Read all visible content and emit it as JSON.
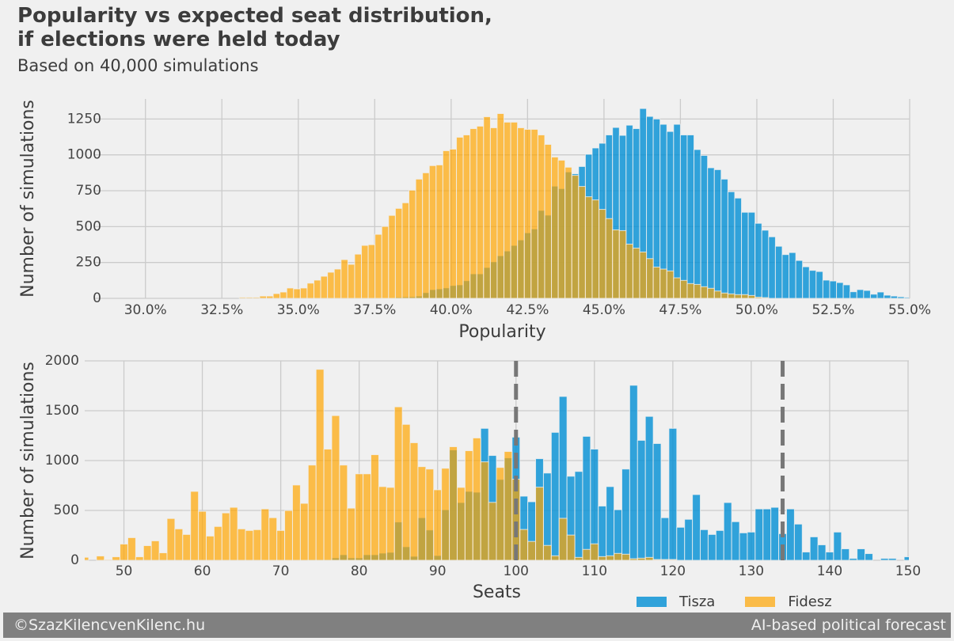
{
  "header": {
    "title_line1": "Popularity vs expected seat distribution,",
    "title_line2": "if elections were held today",
    "subtitle": "Based on 40,000 simulations"
  },
  "legend": [
    {
      "name": "Tisza",
      "color": "#30a2da"
    },
    {
      "name": "Fidesz",
      "color": "#fabb48"
    }
  ],
  "footer": {
    "left": "©SzazKilencvenKilenc.hu",
    "right": "AI-based political forecast"
  },
  "colors": {
    "background": "#f0f0f0",
    "grid": "#cbcbcb",
    "tisza": "#008fd5",
    "fidesz": "#ffa500",
    "threshold_line": "#777777",
    "footer_bg": "#808080"
  },
  "chart_data": [
    {
      "type": "bar",
      "subtype": "histogram-overlay",
      "xlabel": "Popularity",
      "ylabel": "Number of simulations",
      "xlim": [
        28.35,
        55.0
      ],
      "ylim": [
        0,
        1390
      ],
      "grid": true,
      "xticks": [
        "30.0%",
        "32.5%",
        "35.0%",
        "37.5%",
        "40.0%",
        "42.5%",
        "45.0%",
        "47.5%",
        "50.0%",
        "52.5%",
        "55.0%"
      ],
      "xtick_values": [
        30,
        32.5,
        35,
        37.5,
        40,
        42.5,
        45,
        47.5,
        50,
        52.5,
        55
      ],
      "yticks": [
        "0",
        "250",
        "500",
        "750",
        "1000",
        "1250"
      ],
      "ytick_values": [
        0,
        250,
        500,
        750,
        1000,
        1250
      ],
      "bin_start": 33.07,
      "bin_width": 0.222,
      "series": [
        {
          "name": "Tisza",
          "values": [
            0,
            0,
            0,
            0,
            0,
            0,
            0,
            0,
            0,
            0,
            0,
            0,
            0,
            0,
            0,
            0,
            0,
            0,
            0,
            0,
            0,
            2,
            4,
            8,
            10,
            11,
            16,
            40,
            61,
            66,
            73,
            90,
            94,
            123,
            171,
            171,
            215,
            255,
            297,
            330,
            369,
            407,
            457,
            484,
            613,
            580,
            782,
            765,
            881,
            868,
            919,
            1004,
            1048,
            1081,
            1139,
            1191,
            1136,
            1207,
            1183,
            1323,
            1268,
            1250,
            1213,
            1163,
            1213,
            1139,
            1139,
            1037,
            996,
            910,
            897,
            831,
            743,
            699,
            600,
            600,
            523,
            475,
            429,
            363,
            305,
            319,
            264,
            220,
            195,
            187,
            127,
            121,
            110,
            94,
            46,
            61,
            55,
            29,
            44,
            22,
            16,
            11,
            7
          ]
        },
        {
          "name": "Fidesz",
          "values": [
            7,
            7,
            7,
            16,
            16,
            33,
            44,
            72,
            66,
            72,
            106,
            127,
            154,
            182,
            204,
            270,
            237,
            308,
            369,
            374,
            446,
            501,
            578,
            627,
            666,
            754,
            831,
            875,
            925,
            930,
            1029,
            1040,
            1123,
            1139,
            1183,
            1200,
            1266,
            1189,
            1288,
            1228,
            1228,
            1189,
            1178,
            1178,
            1139,
            1073,
            985,
            963,
            914,
            857,
            780,
            708,
            686,
            620,
            556,
            477,
            472,
            378,
            350,
            323,
            277,
            218,
            204,
            191,
            143,
            125,
            103,
            97,
            81,
            70,
            51,
            37,
            31,
            26,
            26,
            20,
            8,
            5
          ]
        }
      ]
    },
    {
      "type": "bar",
      "subtype": "histogram-overlay",
      "xlabel": "Seats",
      "ylabel": "Number of simulations",
      "xlim": [
        45,
        150.1
      ],
      "ylim": [
        0,
        2000
      ],
      "grid": true,
      "xticks": [
        "50",
        "60",
        "70",
        "80",
        "90",
        "100",
        "110",
        "120",
        "130",
        "140",
        "150"
      ],
      "xtick_values": [
        50,
        60,
        70,
        80,
        90,
        100,
        110,
        120,
        130,
        140,
        150
      ],
      "yticks": [
        "0",
        "500",
        "1000",
        "1500",
        "2000"
      ],
      "ytick_values": [
        0,
        500,
        1000,
        1500,
        2000
      ],
      "bin_start": 45,
      "bin_width": 1,
      "threshold_lines": [
        100,
        134
      ],
      "series": [
        {
          "name": "Tisza",
          "values": [
            0,
            0,
            0,
            0,
            0,
            0,
            0,
            0,
            0,
            0,
            0,
            0,
            0,
            0,
            0,
            0,
            0,
            0,
            0,
            0,
            0,
            0,
            0,
            0,
            0,
            0,
            0,
            0,
            0,
            8,
            8,
            8,
            24,
            56,
            24,
            24,
            56,
            56,
            72,
            80,
            384,
            136,
            40,
            427,
            304,
            48,
            507,
            1107,
            579,
            691,
            683,
            1323,
            1051,
            811,
            1027,
            1235,
            643,
            587,
            1019,
            875,
            1283,
            1643,
            843,
            891,
            1243,
            1115,
            544,
            739,
            507,
            915,
            1755,
            1203,
            1443,
            1171,
            427,
            1323,
            331,
            411,
            659,
            307,
            259,
            299,
            579,
            387,
            275,
            283,
            515,
            515,
            531,
            267,
            515,
            363,
            83,
            235,
            155,
            83,
            283,
            115,
            19,
            115,
            67,
            0,
            19,
            19,
            0,
            35
          ]
        },
        {
          "name": "Fidesz",
          "values": [
            30,
            0,
            43,
            8,
            35,
            163,
            227,
            35,
            147,
            195,
            75,
            419,
            315,
            259,
            691,
            491,
            243,
            339,
            475,
            531,
            315,
            299,
            307,
            515,
            427,
            299,
            499,
            755,
            571,
            955,
            1915,
            1115,
            1451,
            955,
            523,
            867,
            867,
            1059,
            739,
            731,
            1539,
            1363,
            1179,
            939,
            915,
            707,
            923,
            1139,
            731,
            1099,
            1227,
            987,
            581,
            931,
            1091,
            813,
            309,
            189,
            733,
            149,
            45,
            421,
            253,
            29,
            109,
            165,
            37,
            45,
            69,
            61,
            16,
            21,
            29,
            8,
            8,
            8
          ]
        }
      ]
    }
  ]
}
